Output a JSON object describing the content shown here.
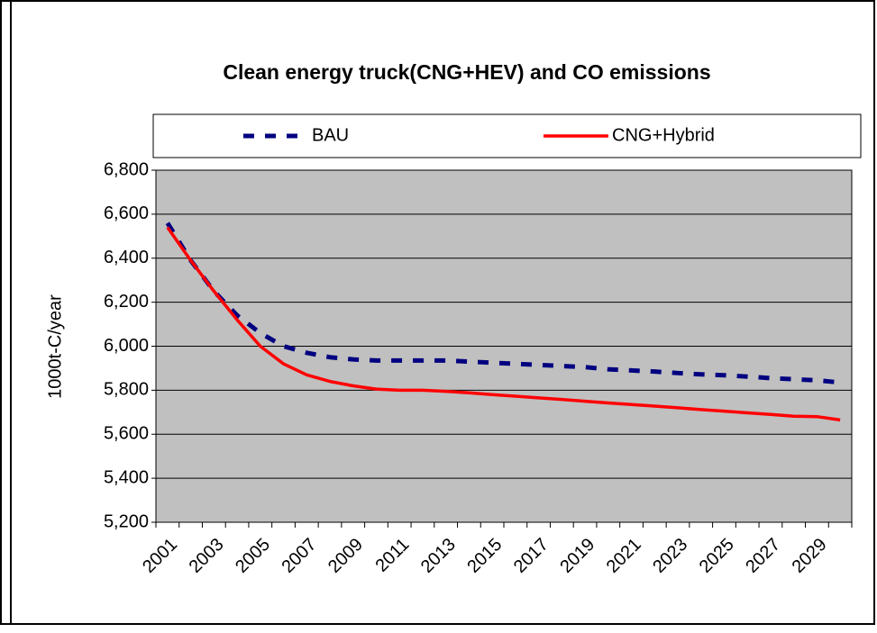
{
  "chart_data": {
    "type": "line",
    "title": "Clean energy truck(CNG+HEV) and CO   emissions",
    "y_label": "1000t-C/year",
    "categories": [
      "2001",
      null,
      "2003",
      null,
      "2005",
      null,
      "2007",
      null,
      "2009",
      null,
      "2011",
      null,
      "2013",
      null,
      "2015",
      null,
      "2017",
      null,
      "2019",
      null,
      "2021",
      null,
      "2023",
      null,
      "2025",
      null,
      "2027",
      null,
      "2029",
      null
    ],
    "series": [
      {
        "name": "BAU",
        "color": "#000080",
        "dashed": true,
        "values": [
          6560,
          6390,
          6250,
          6140,
          6060,
          6000,
          5970,
          5950,
          5940,
          5935,
          5935,
          5935,
          5935,
          5930,
          5925,
          5920,
          5915,
          5910,
          5905,
          5895,
          5890,
          5885,
          5878,
          5872,
          5868,
          5862,
          5855,
          5850,
          5845,
          5835
        ]
      },
      {
        "name": "CNG+Hybrid",
        "color": "#ff0000",
        "dashed": false,
        "values": [
          6540,
          6390,
          6250,
          6120,
          6000,
          5920,
          5870,
          5840,
          5820,
          5805,
          5800,
          5800,
          5795,
          5788,
          5780,
          5773,
          5765,
          5758,
          5750,
          5742,
          5735,
          5728,
          5720,
          5712,
          5705,
          5697,
          5690,
          5682,
          5680,
          5665
        ]
      }
    ],
    "ylim": [
      5200,
      6800
    ],
    "yticks": [
      {
        "value": 5200,
        "label": "5,200"
      },
      {
        "value": 5400,
        "label": "5,400"
      },
      {
        "value": 5600,
        "label": "5,600"
      },
      {
        "value": 5800,
        "label": "5,800"
      },
      {
        "value": 6000,
        "label": "6,000"
      },
      {
        "value": 6200,
        "label": "6,200"
      },
      {
        "value": 6400,
        "label": "6,400"
      },
      {
        "value": 6600,
        "label": "6,600"
      },
      {
        "value": 6800,
        "label": "6,800"
      }
    ],
    "grid": true,
    "plot_background": "#c0c0c0",
    "legend": "top"
  }
}
